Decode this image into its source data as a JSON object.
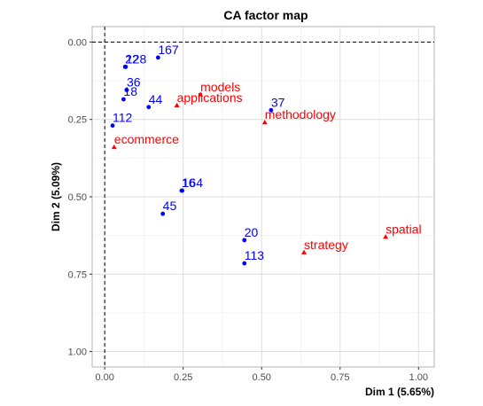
{
  "chart_data": {
    "type": "scatter",
    "title": "CA factor map",
    "xlabel": "Dim 1 (5.65%)",
    "ylabel": "Dim 2 (5.09%)",
    "xlim": [
      -0.04,
      1.05
    ],
    "ylim": [
      1.05,
      -0.05
    ],
    "x_ticks": [
      {
        "v": 0.0,
        "label": "0.00"
      },
      {
        "v": 0.25,
        "label": "0.25"
      },
      {
        "v": 0.5,
        "label": "0.50"
      },
      {
        "v": 0.75,
        "label": "0.75"
      },
      {
        "v": 1.0,
        "label": "1.00"
      }
    ],
    "y_ticks": [
      {
        "v": 0.0,
        "label": "0.00"
      },
      {
        "v": 0.25,
        "label": "0.25"
      },
      {
        "v": 0.5,
        "label": "0.50"
      },
      {
        "v": 0.75,
        "label": "0.75"
      },
      {
        "v": 1.0,
        "label": "1.00"
      }
    ],
    "grid": true,
    "reference_lines": {
      "x": 0,
      "y": 0,
      "style": "dashed"
    },
    "series": [
      {
        "name": "rows",
        "color": "#0000ff",
        "marker": "circle",
        "points": [
          {
            "label": "167",
            "x": 0.17,
            "y": 0.05
          },
          {
            "label": "22",
            "x": 0.065,
            "y": 0.08
          },
          {
            "label": "128",
            "x": 0.067,
            "y": 0.08
          },
          {
            "label": "36",
            "x": 0.07,
            "y": 0.155
          },
          {
            "label": "18",
            "x": 0.06,
            "y": 0.185
          },
          {
            "label": "44",
            "x": 0.14,
            "y": 0.21
          },
          {
            "label": "112",
            "x": 0.025,
            "y": 0.27
          },
          {
            "label": "37",
            "x": 0.53,
            "y": 0.22
          },
          {
            "label": "16",
            "x": 0.245,
            "y": 0.48
          },
          {
            "label": "164",
            "x": 0.247,
            "y": 0.48
          },
          {
            "label": "45",
            "x": 0.185,
            "y": 0.555
          },
          {
            "label": "20",
            "x": 0.445,
            "y": 0.64
          },
          {
            "label": "113",
            "x": 0.445,
            "y": 0.715
          }
        ]
      },
      {
        "name": "columns",
        "color": "#ff0000",
        "marker": "triangle",
        "points": [
          {
            "label": "models",
            "x": 0.305,
            "y": 0.17
          },
          {
            "label": "applications",
            "x": 0.23,
            "y": 0.205
          },
          {
            "label": "methodology",
            "x": 0.51,
            "y": 0.26
          },
          {
            "label": "ecommerce",
            "x": 0.03,
            "y": 0.34
          },
          {
            "label": "strategy",
            "x": 0.635,
            "y": 0.68
          },
          {
            "label": "spatial",
            "x": 0.895,
            "y": 0.63
          }
        ]
      }
    ]
  }
}
